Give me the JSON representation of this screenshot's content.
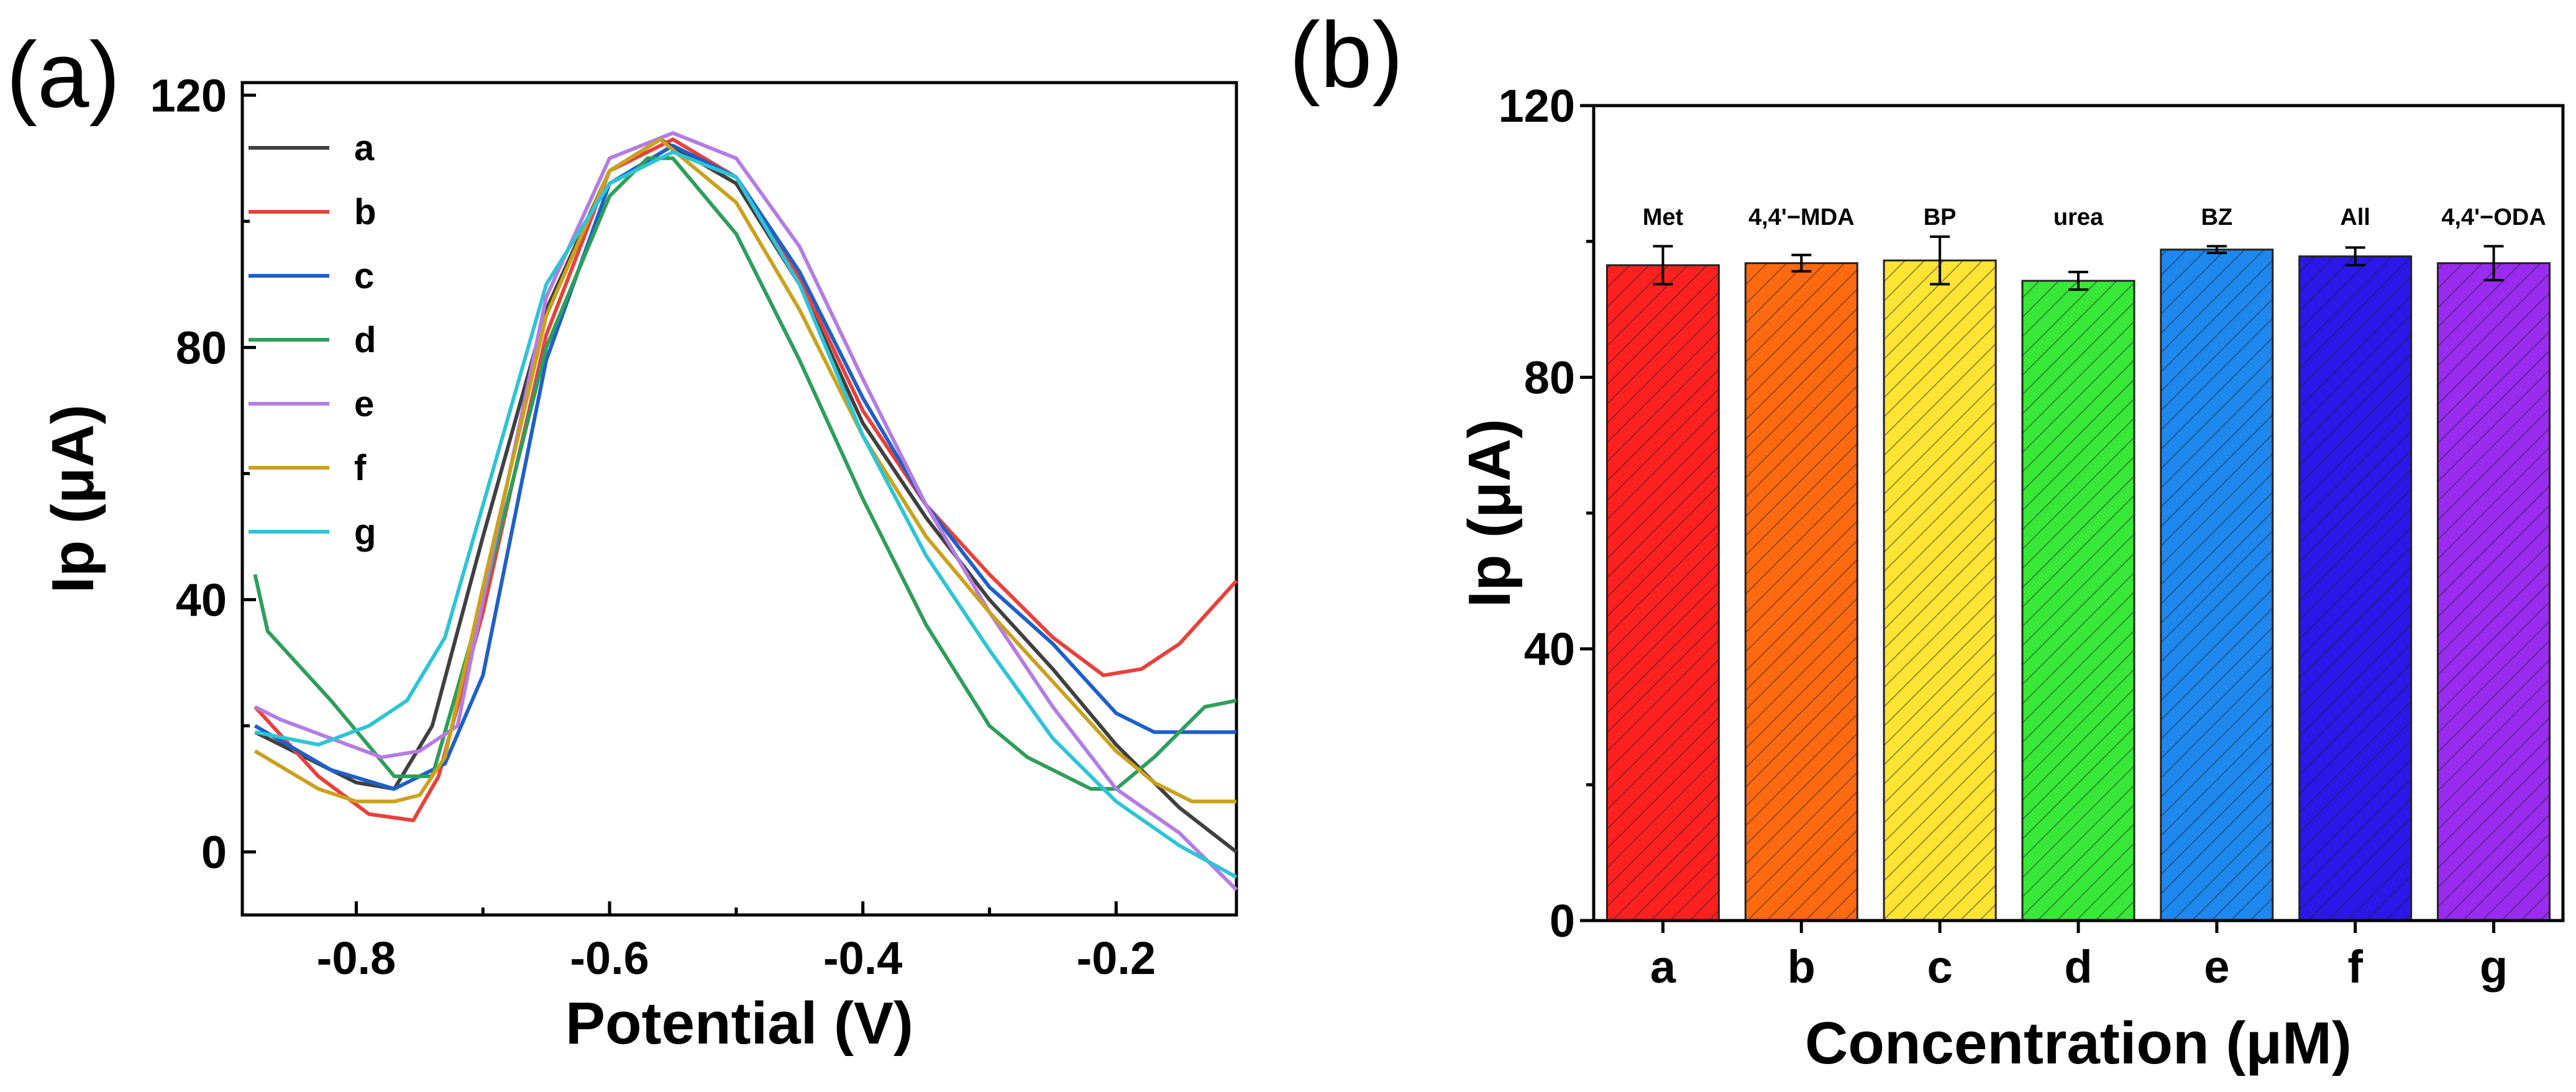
{
  "figure": {
    "panel_a_label": "(a)",
    "panel_b_label": "(b)"
  },
  "chart_data": [
    {
      "type": "line",
      "panel": "(a)",
      "title": "",
      "xlabel": "Potential (V)",
      "ylabel": "Ip (μA)",
      "xlim": [
        -0.89,
        -0.105
      ],
      "ylim": [
        -10,
        122
      ],
      "xticks": [
        -0.8,
        -0.6,
        -0.4,
        -0.2
      ],
      "xtick_labels": [
        "-0.8",
        "-0.6",
        "-0.4",
        "-0.2"
      ],
      "yticks": [
        0,
        40,
        80,
        120
      ],
      "ytick_labels": [
        "0",
        "40",
        "80",
        "120"
      ],
      "legend_position": "top-left",
      "series": [
        {
          "name": "a",
          "color": "#404040",
          "x": [
            -0.88,
            -0.8,
            -0.77,
            -0.74,
            -0.7,
            -0.65,
            -0.6,
            -0.56,
            -0.5,
            -0.45,
            -0.4,
            -0.35,
            -0.3,
            -0.25,
            -0.2,
            -0.15,
            -0.105
          ],
          "y": [
            19,
            11,
            10,
            20,
            50,
            86,
            108,
            113,
            106,
            90,
            68,
            53,
            40,
            29,
            17,
            7,
            0
          ]
        },
        {
          "name": "b",
          "color": "#e8413c",
          "x": [
            -0.88,
            -0.83,
            -0.79,
            -0.755,
            -0.735,
            -0.7,
            -0.65,
            -0.6,
            -0.55,
            -0.5,
            -0.45,
            -0.4,
            -0.35,
            -0.3,
            -0.25,
            -0.21,
            -0.18,
            -0.15,
            -0.105
          ],
          "y": [
            23,
            12,
            6,
            5,
            12,
            38,
            82,
            108,
            113,
            107,
            91,
            70,
            55,
            44,
            34,
            28,
            29,
            33,
            43
          ]
        },
        {
          "name": "c",
          "color": "#1f5fc7",
          "x": [
            -0.88,
            -0.82,
            -0.77,
            -0.73,
            -0.7,
            -0.65,
            -0.6,
            -0.55,
            -0.5,
            -0.45,
            -0.4,
            -0.35,
            -0.3,
            -0.25,
            -0.2,
            -0.17,
            -0.105
          ],
          "y": [
            20,
            13,
            10,
            14,
            28,
            78,
            106,
            112,
            107,
            92,
            72,
            55,
            42,
            33,
            22,
            19,
            19
          ]
        },
        {
          "name": "d",
          "color": "#2e9e5b",
          "x": [
            -0.88,
            -0.87,
            -0.82,
            -0.77,
            -0.74,
            -0.7,
            -0.65,
            -0.6,
            -0.57,
            -0.55,
            -0.5,
            -0.45,
            -0.4,
            -0.35,
            -0.3,
            -0.27,
            -0.22,
            -0.2,
            -0.17,
            -0.13,
            -0.105
          ],
          "y": [
            44,
            35,
            24,
            12,
            12,
            40,
            80,
            104,
            110,
            110,
            98,
            78,
            56,
            36,
            20,
            15,
            10,
            10,
            15,
            23,
            24
          ]
        },
        {
          "name": "e",
          "color": "#b47de0",
          "x": [
            -0.88,
            -0.86,
            -0.82,
            -0.78,
            -0.75,
            -0.72,
            -0.7,
            -0.65,
            -0.6,
            -0.55,
            -0.5,
            -0.45,
            -0.4,
            -0.35,
            -0.3,
            -0.25,
            -0.2,
            -0.15,
            -0.105
          ],
          "y": [
            23,
            21,
            18,
            15,
            16,
            20,
            40,
            88,
            110,
            114,
            110,
            96,
            75,
            55,
            38,
            23,
            10,
            3,
            -6
          ]
        },
        {
          "name": "f",
          "color": "#c9a21e",
          "x": [
            -0.88,
            -0.83,
            -0.8,
            -0.77,
            -0.75,
            -0.73,
            -0.7,
            -0.65,
            -0.6,
            -0.56,
            -0.5,
            -0.45,
            -0.4,
            -0.35,
            -0.3,
            -0.25,
            -0.2,
            -0.17,
            -0.14,
            -0.105
          ],
          "y": [
            16,
            10,
            8,
            8,
            9,
            15,
            42,
            85,
            108,
            113,
            103,
            86,
            66,
            50,
            38,
            27,
            16,
            11,
            8,
            8
          ]
        },
        {
          "name": "g",
          "color": "#2ec4d6",
          "x": [
            -0.88,
            -0.83,
            -0.79,
            -0.76,
            -0.73,
            -0.7,
            -0.65,
            -0.6,
            -0.55,
            -0.5,
            -0.45,
            -0.4,
            -0.35,
            -0.3,
            -0.25,
            -0.2,
            -0.15,
            -0.105
          ],
          "y": [
            19,
            17,
            20,
            24,
            34,
            55,
            90,
            106,
            111,
            107,
            90,
            66,
            47,
            32,
            18,
            8,
            1,
            -4
          ]
        }
      ]
    },
    {
      "type": "bar",
      "panel": "(b)",
      "title": "",
      "xlabel": "Concentration (μM)",
      "ylabel": "Ip (μA)",
      "ylim": [
        0,
        120
      ],
      "yticks": [
        0,
        40,
        80,
        120
      ],
      "ytick_labels": [
        "0",
        "40",
        "80",
        "120"
      ],
      "categories": [
        "a",
        "b",
        "c",
        "d",
        "e",
        "f",
        "g"
      ],
      "labels": [
        "Met",
        "4,4'−MDA",
        "BP",
        "urea",
        "BZ",
        "All",
        "4,4'−ODA"
      ],
      "values": [
        96.5,
        96.8,
        97.2,
        94.2,
        98.8,
        97.8,
        96.8
      ],
      "errors": [
        2.8,
        1.2,
        3.5,
        1.3,
        0.5,
        1.3,
        2.5
      ],
      "colors": [
        "#ff2020",
        "#ff6a10",
        "#ffe433",
        "#38e838",
        "#1e88ee",
        "#2b18e8",
        "#9a2cf0"
      ]
    }
  ]
}
